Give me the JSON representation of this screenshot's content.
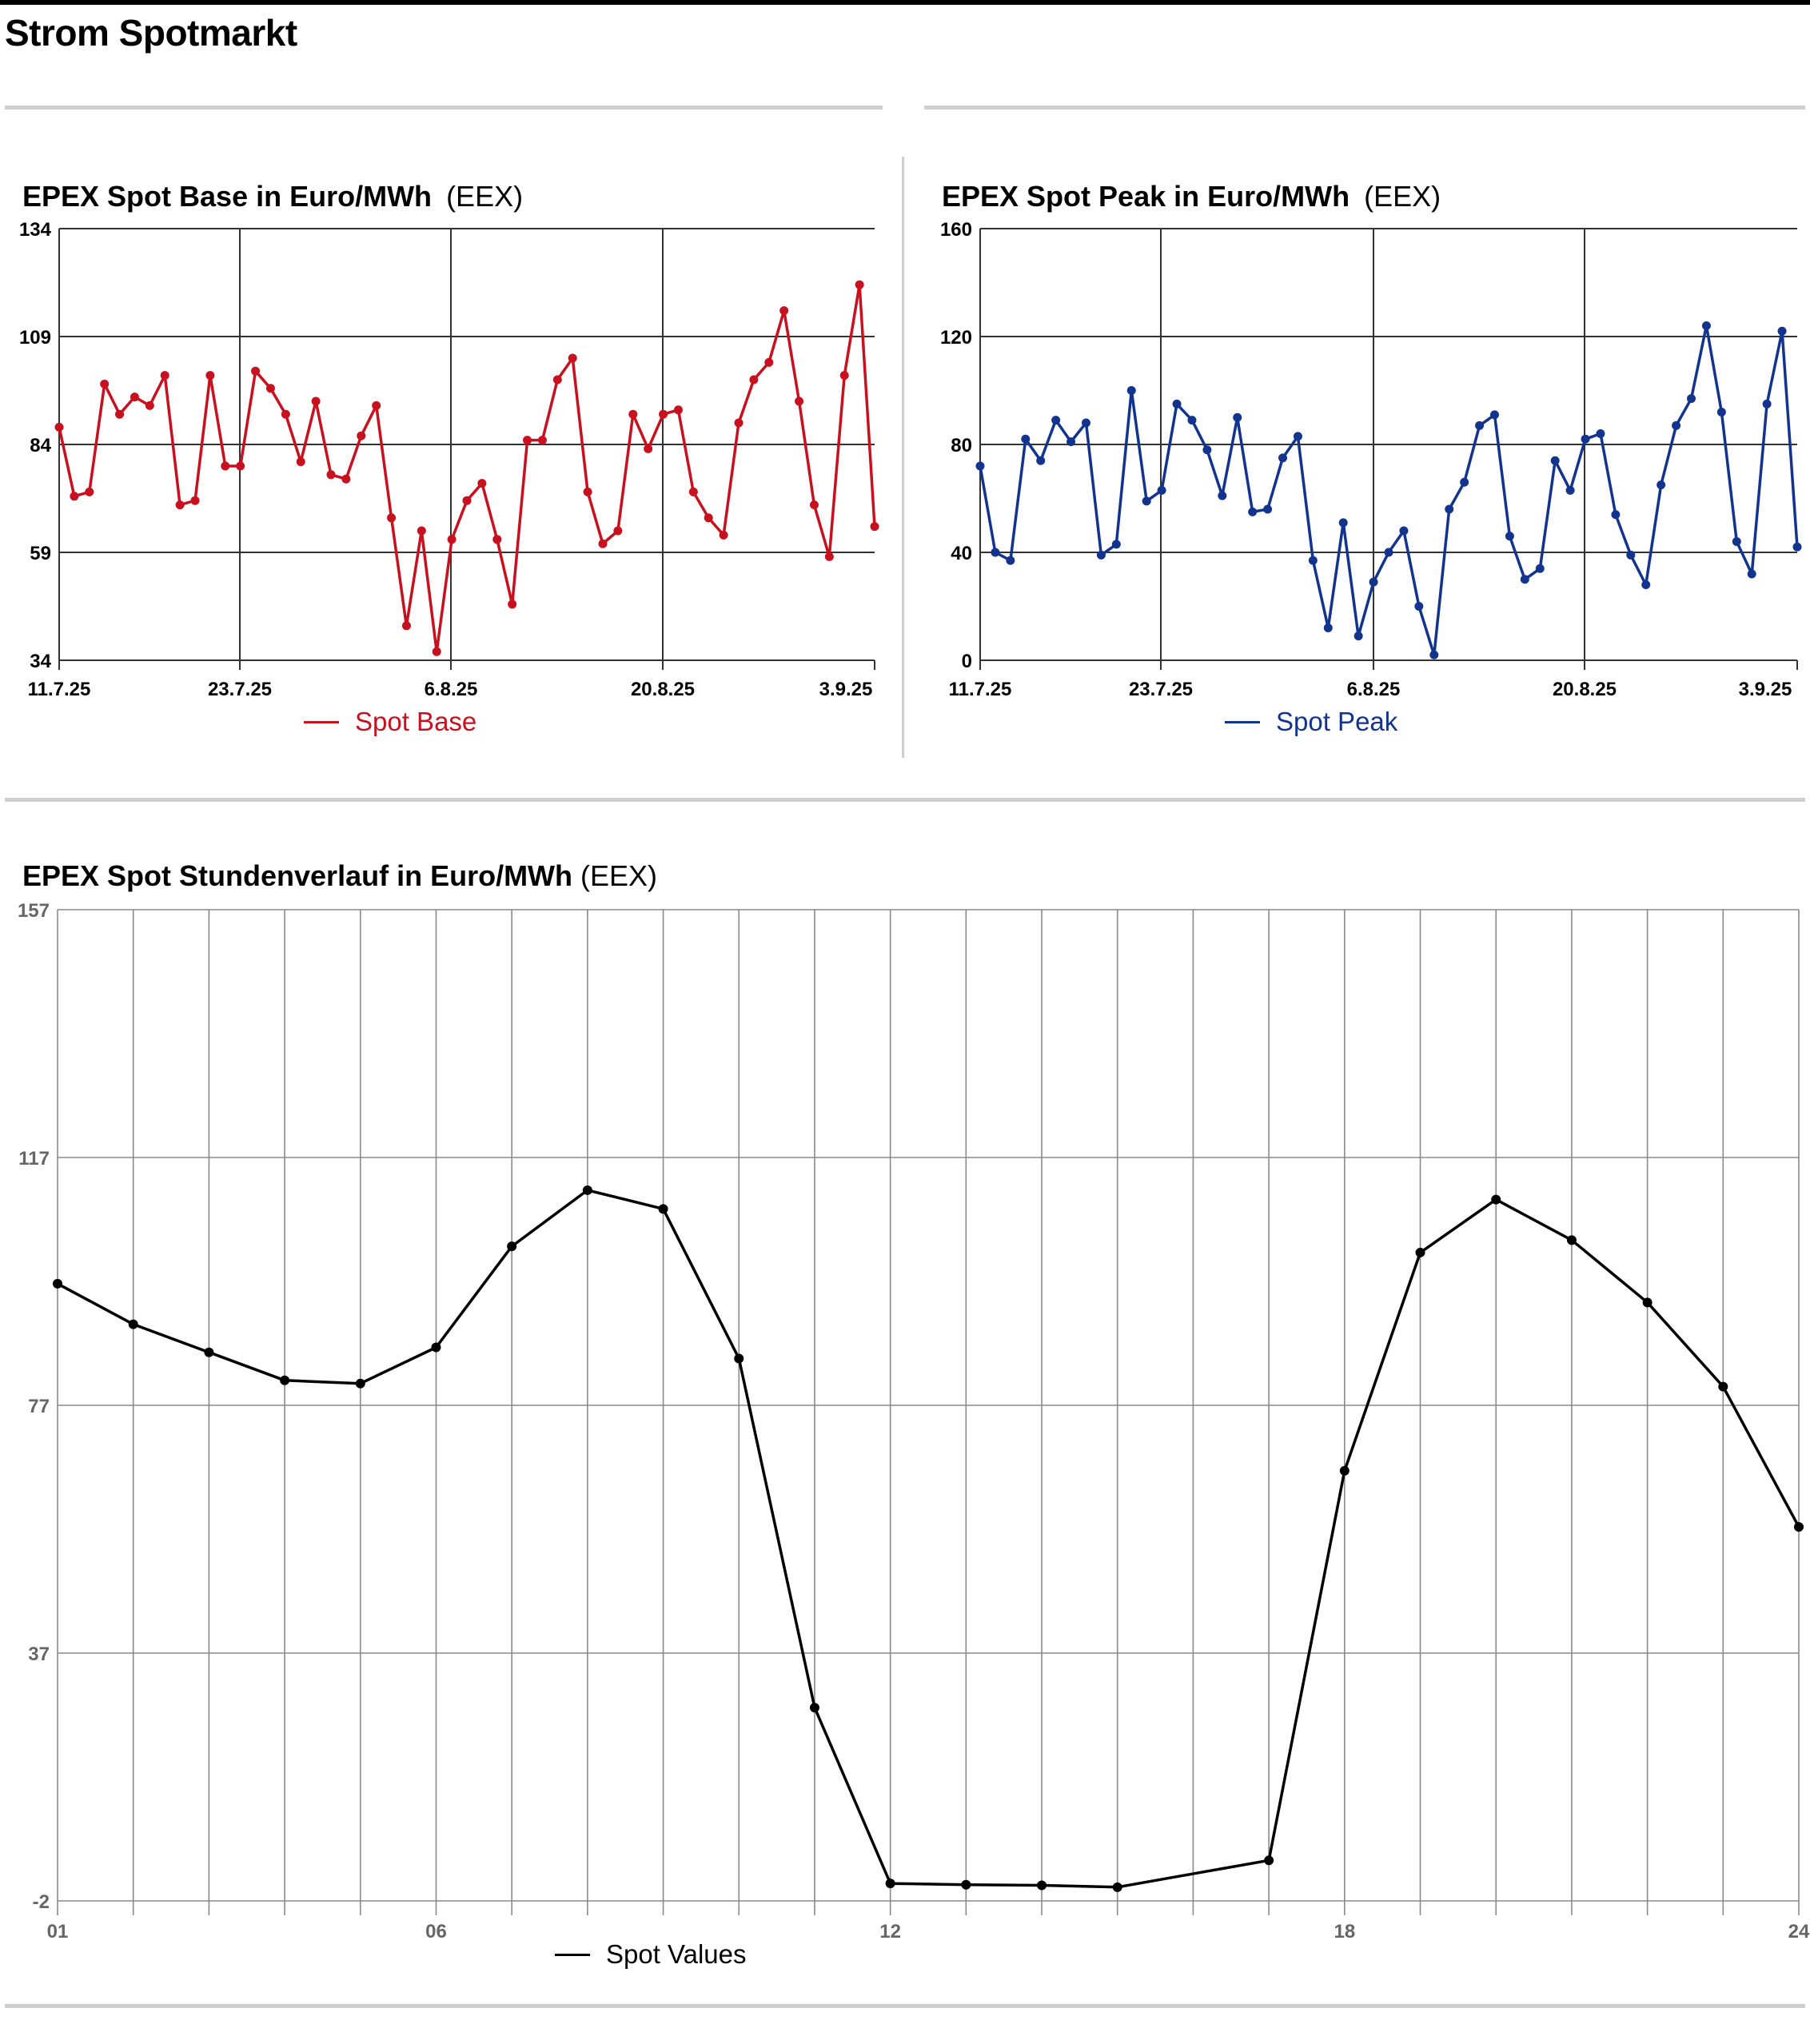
{
  "page": {
    "title": "Strom Spotmarkt"
  },
  "colors": {
    "base": "#c8101e",
    "peak": "#12348f",
    "hourly": "#000000"
  },
  "chart_data": [
    {
      "id": "base",
      "type": "line",
      "title": "EPEX Spot Base in Euro/MWh",
      "source": "(EEX)",
      "ylim": [
        34,
        134
      ],
      "yticks": [
        "34",
        "59",
        "84",
        "109",
        "134"
      ],
      "xticks": [
        "11.7.25",
        "23.7.25",
        "6.8.25",
        "20.8.25",
        "3.9.25"
      ],
      "grid": true,
      "legend_position": "bottom-center",
      "series": [
        {
          "name": "Spot Base",
          "values": [
            88,
            72,
            73,
            98,
            91,
            95,
            93,
            100,
            70,
            71,
            100,
            79,
            79,
            101,
            97,
            91,
            80,
            94,
            77,
            76,
            86,
            93,
            67,
            42,
            64,
            36,
            62,
            71,
            75,
            62,
            47,
            85,
            85,
            99,
            104,
            73,
            61,
            64,
            91,
            83,
            91,
            92,
            73,
            67,
            63,
            89,
            99,
            103,
            115,
            94,
            70,
            58,
            100,
            121,
            65
          ]
        }
      ]
    },
    {
      "id": "peak",
      "type": "line",
      "title": "EPEX Spot Peak in Euro/MWh",
      "source": "(EEX)",
      "ylim": [
        0,
        160
      ],
      "yticks": [
        "0",
        "40",
        "80",
        "120",
        "160"
      ],
      "xticks": [
        "11.7.25",
        "23.7.25",
        "6.8.25",
        "20.8.25",
        "3.9.25"
      ],
      "grid": true,
      "legend_position": "bottom-center",
      "series": [
        {
          "name": "Spot Peak",
          "values": [
            72,
            40,
            37,
            82,
            74,
            89,
            81,
            88,
            39,
            43,
            100,
            59,
            63,
            95,
            89,
            78,
            61,
            90,
            55,
            56,
            75,
            83,
            37,
            12,
            51,
            9,
            29,
            40,
            48,
            20,
            2,
            56,
            66,
            87,
            91,
            46,
            30,
            34,
            74,
            63,
            82,
            84,
            54,
            39,
            28,
            65,
            87,
            97,
            124,
            92,
            44,
            32,
            95,
            122,
            42
          ]
        }
      ]
    },
    {
      "id": "hourly",
      "type": "line",
      "title": "EPEX Spot Stundenverlauf in Euro/MWh",
      "source": "(EEX)",
      "ylim": [
        -2,
        157
      ],
      "yticks": [
        "-2",
        "37",
        "77",
        "117",
        "157"
      ],
      "x": [
        1,
        2,
        3,
        4,
        5,
        6,
        7,
        8,
        9,
        10,
        11,
        12,
        13,
        14,
        15,
        17,
        18,
        19,
        20,
        21,
        22,
        23,
        24
      ],
      "xlim": [
        1,
        24
      ],
      "xticks": [
        "01",
        "06",
        "12",
        "18",
        "24"
      ],
      "xtick_values": [
        1,
        6,
        12,
        18,
        24
      ],
      "grid": true,
      "legend_position": "bottom-center",
      "series": [
        {
          "name": "Spot Values",
          "values": [
            97,
            90.5,
            86,
            81.5,
            81,
            86.8,
            103,
            112,
            109,
            85,
            29,
            0.8,
            0.6,
            0.5,
            0.2,
            4.5,
            67,
            102,
            110.5,
            104,
            94,
            80.5,
            58
          ]
        }
      ]
    }
  ]
}
